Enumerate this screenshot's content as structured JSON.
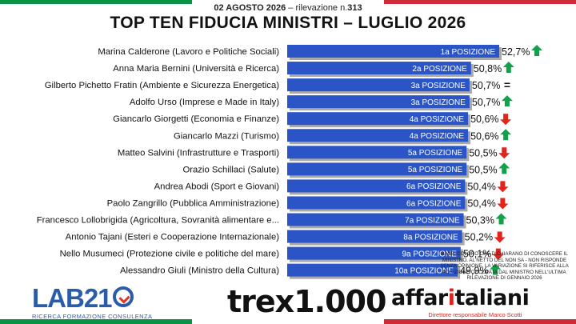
{
  "header": {
    "date": "02 AGOSTO 2026",
    "separator": "–",
    "survey_label": "rilevazione n.",
    "survey_number": "313",
    "title": "TOP TEN FIDUCIA MINISTRI – LUGLIO 2026"
  },
  "colors": {
    "bar": "#2b55c6",
    "bar_shadow": "#a9a9a9",
    "bar_label": "#ffffff",
    "up_arrow": "#13a04a",
    "down_arrow": "#e2241b",
    "flag_green": "#0a9246",
    "flag_white": "#ffffff",
    "flag_red": "#ce2b37"
  },
  "chart_data": {
    "type": "bar",
    "orientation": "horizontal",
    "title": "TOP TEN FIDUCIA MINISTRI – LUGLIO 2026",
    "unit": "%",
    "categories": [
      "Marina Calderone (Lavoro e Politiche Sociali)",
      "Anna Maria Bernini (Università e Ricerca)",
      "Gilberto Pichetto Fratin (Ambiente e Sicurezza Energetica)",
      "Adolfo Urso (Imprese e Made in Italy)",
      "Giancarlo Giorgetti (Economia e Finanze)",
      "Giancarlo Mazzi (Turismo)",
      "Matteo Salvini (Infrastrutture e Trasporti)",
      "Orazio Schillaci (Salute)",
      "Andrea Abodi (Sport e Giovani)",
      "Paolo Zangrillo (Pubblica Amministrazione)",
      "Francesco Lollobrigida (Agricoltura, Sovranità alimentare e...",
      "Antonio Tajani (Esteri e Cooperazione Internazionale)",
      "Nello Musumeci (Protezione civile e politiche del mare)",
      "Alessandro Giuli (Ministro della Cultura)"
    ],
    "values": [
      52.7,
      50.8,
      50.7,
      50.7,
      50.6,
      50.6,
      50.5,
      50.5,
      50.4,
      50.4,
      50.3,
      50.2,
      50.1,
      49.9
    ],
    "value_labels": [
      "52,7%",
      "50,8%",
      "50,7%",
      "50,7%",
      "50,6%",
      "50,6%",
      "50,5%",
      "50,5%",
      "50,4%",
      "50,4%",
      "50,3%",
      "50,2%",
      "50,1%",
      "49,9%"
    ],
    "positions": [
      "1a POSIZIONE",
      "2a POSIZIONE",
      "3a POSIZIONE",
      "3a POSIZIONE",
      "4a POSIZIONE",
      "4a POSIZIONE",
      "5a POSIZIONE",
      "5a POSIZIONE",
      "6a POSIZIONE",
      "6a POSIZIONE",
      "7a POSIZIONE",
      "8a POSIZIONE",
      "9a POSIZIONE",
      "10a POSIZIONE"
    ],
    "trends": [
      "up",
      "up",
      "equal",
      "up",
      "down",
      "up",
      "down",
      "up",
      "down",
      "down",
      "up",
      "down",
      "down",
      "up"
    ],
    "trend_equal_symbol": "=",
    "xlim": [
      38.4,
      53.8
    ]
  },
  "note": "BASE: COLORO CHE DICHIARANO DI CONOSCERE IL MINISTRO. AL NETTO DEL NON SA - NON RISPONDE SENZA OPINIONE. LA VARIAZIONE SI RIFERISCE ALLA POSIZIONE OCCUPATA DAL MINISTRO NELL'ULTIMA RILEVAZIONE DI GENNAIO 2026",
  "logos": {
    "lab21_name": "LAB21",
    "lab21_tagline": "RICERCA FORMAZIONE CONSULENZA",
    "trex_name": "trex1.000",
    "affaritaliani_part1": "affar",
    "affaritaliani_part2": "i",
    "affaritaliani_part3": "taliani",
    "affaritaliani_sub": "Direttore responsabile Marco Scotti"
  }
}
